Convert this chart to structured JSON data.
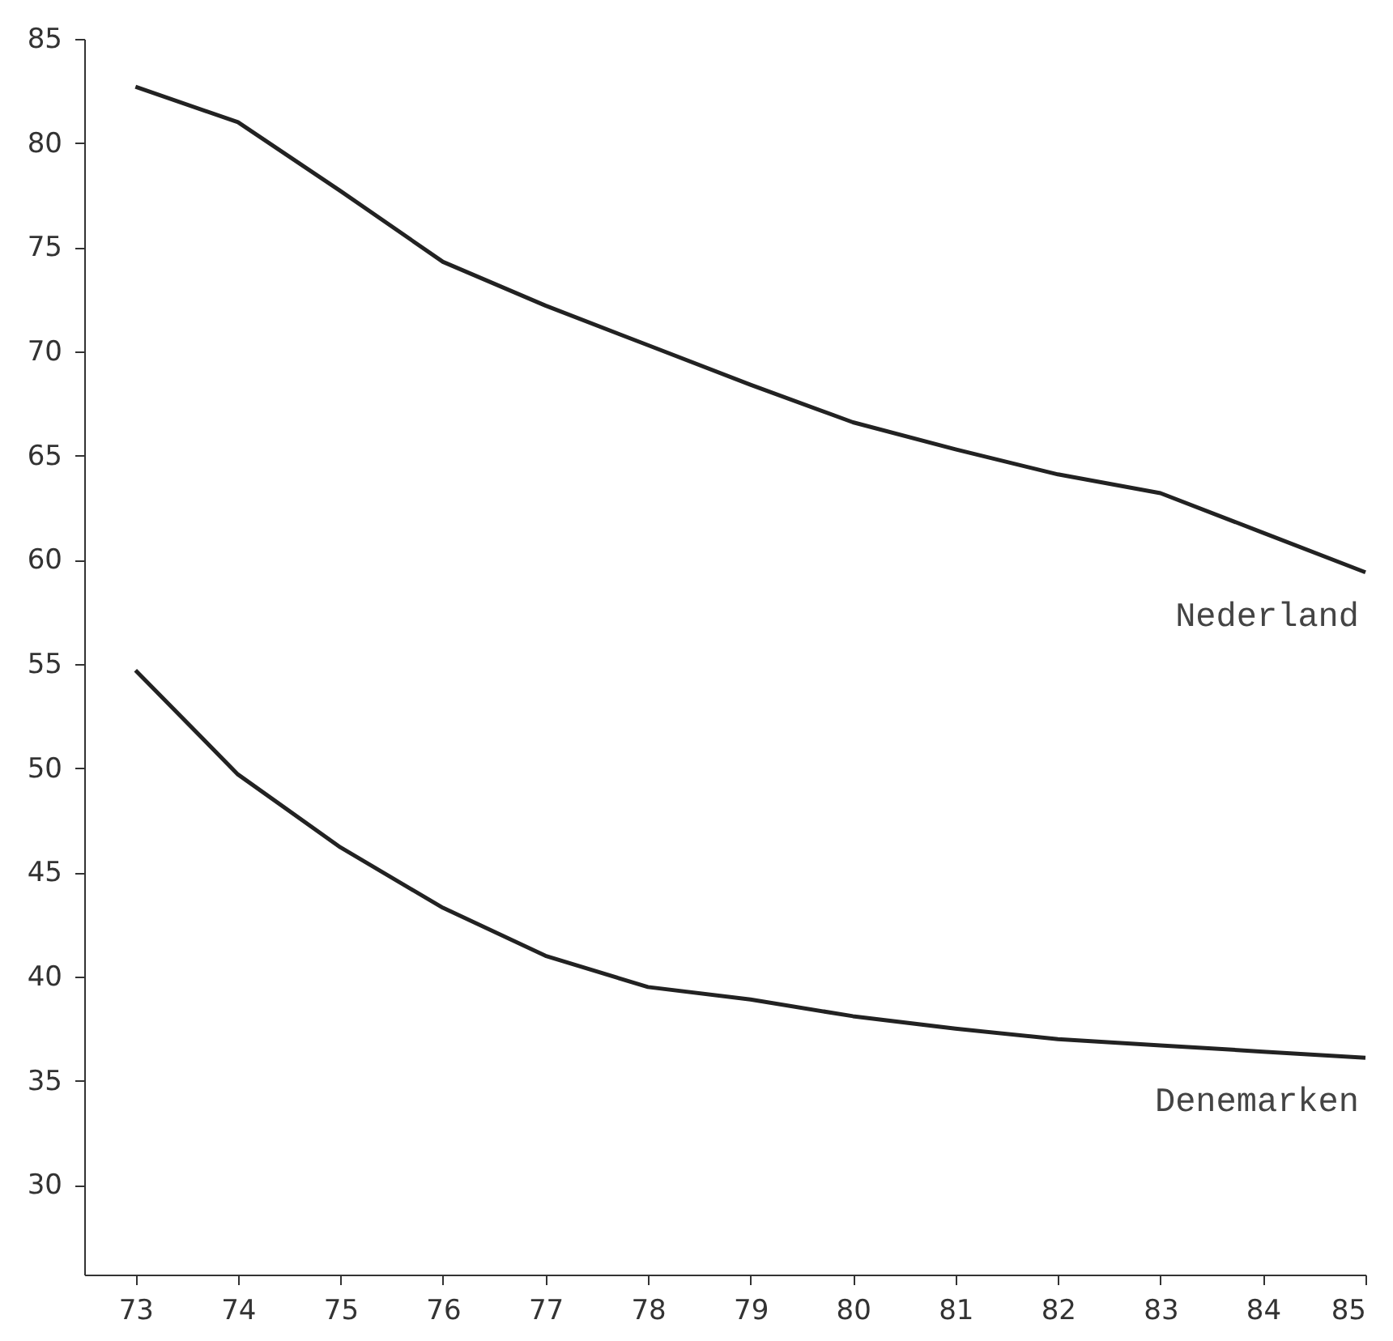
{
  "chart_data": {
    "type": "line",
    "x": [
      73,
      74,
      75,
      76,
      77,
      78,
      79,
      80,
      81,
      82,
      83,
      84,
      85
    ],
    "series": [
      {
        "name": "Nederland",
        "color": "#222222",
        "values": [
          82.7,
          81.0,
          77.7,
          74.3,
          72.2,
          70.3,
          68.4,
          66.6,
          65.3,
          64.1,
          63.2,
          61.3,
          59.4
        ]
      },
      {
        "name": "Denemarken",
        "color": "#222222",
        "values": [
          54.7,
          49.7,
          46.2,
          43.3,
          41.0,
          39.5,
          38.9,
          38.1,
          37.5,
          37.0,
          36.7,
          36.4,
          36.1
        ]
      }
    ],
    "xlim": [
      72.5,
      85
    ],
    "xticks": [
      73,
      74,
      75,
      76,
      77,
      78,
      79,
      80,
      81,
      82,
      83,
      84,
      85
    ],
    "ylim": [
      25.7,
      85
    ],
    "yticks": [
      30,
      35,
      40,
      45,
      50,
      55,
      60,
      65,
      70,
      75,
      80,
      85
    ],
    "grid": false,
    "marker": "none",
    "line_style": "solid"
  }
}
